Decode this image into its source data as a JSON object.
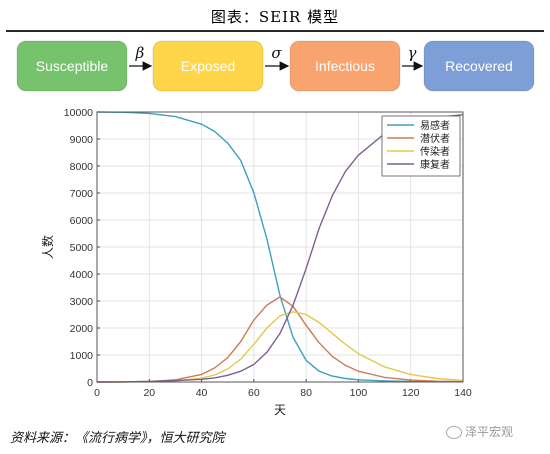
{
  "header": {
    "title": "图表：SEIR 模型"
  },
  "flow": {
    "stages": [
      {
        "label": "Susceptible",
        "color": "#77c26d"
      },
      {
        "label": "Exposed",
        "color": "#ffd54a"
      },
      {
        "label": "Infectious",
        "color": "#f9a46f"
      },
      {
        "label": "Recovered",
        "color": "#7d9ed6"
      }
    ],
    "transitions": [
      "β",
      "σ",
      "γ"
    ]
  },
  "chart_data": {
    "type": "line",
    "xlabel": "天",
    "ylabel": "人数",
    "xlim": [
      0,
      140
    ],
    "ylim": [
      0,
      10000
    ],
    "xticks": [
      0,
      20,
      40,
      60,
      80,
      100,
      120,
      140
    ],
    "yticks": [
      0,
      1000,
      2000,
      3000,
      4000,
      5000,
      6000,
      7000,
      8000,
      9000,
      10000
    ],
    "grid": true,
    "legend_position": "top-right",
    "x": [
      0,
      10,
      20,
      30,
      40,
      45,
      50,
      55,
      60,
      65,
      70,
      75,
      80,
      85,
      90,
      95,
      100,
      110,
      120,
      130,
      140
    ],
    "series": [
      {
        "name": "易感者",
        "color": "#3f9fbf",
        "values": [
          10000,
          9990,
          9950,
          9830,
          9550,
          9280,
          8850,
          8200,
          7000,
          5300,
          3200,
          1650,
          800,
          400,
          220,
          130,
          80,
          40,
          20,
          12,
          8
        ]
      },
      {
        "name": "潜伏者",
        "color": "#cf7a55",
        "values": [
          0,
          5,
          20,
          80,
          280,
          520,
          900,
          1500,
          2300,
          2850,
          3150,
          2800,
          2100,
          1450,
          950,
          620,
          400,
          170,
          70,
          30,
          15
        ]
      },
      {
        "name": "传染者",
        "color": "#e3c84b",
        "values": [
          0,
          3,
          10,
          40,
          140,
          260,
          480,
          850,
          1400,
          2000,
          2450,
          2600,
          2500,
          2200,
          1800,
          1400,
          1050,
          560,
          280,
          130,
          60
        ]
      },
      {
        "name": "康复者",
        "color": "#7e5f93",
        "values": [
          0,
          2,
          20,
          50,
          100,
          150,
          250,
          400,
          650,
          1100,
          1800,
          2850,
          4200,
          5700,
          6900,
          7800,
          8400,
          9200,
          9600,
          9800,
          9900
        ]
      }
    ]
  },
  "footer": {
    "source": "资料来源：《流行病学》，恒大研究院",
    "watermark": "泽平宏观"
  }
}
